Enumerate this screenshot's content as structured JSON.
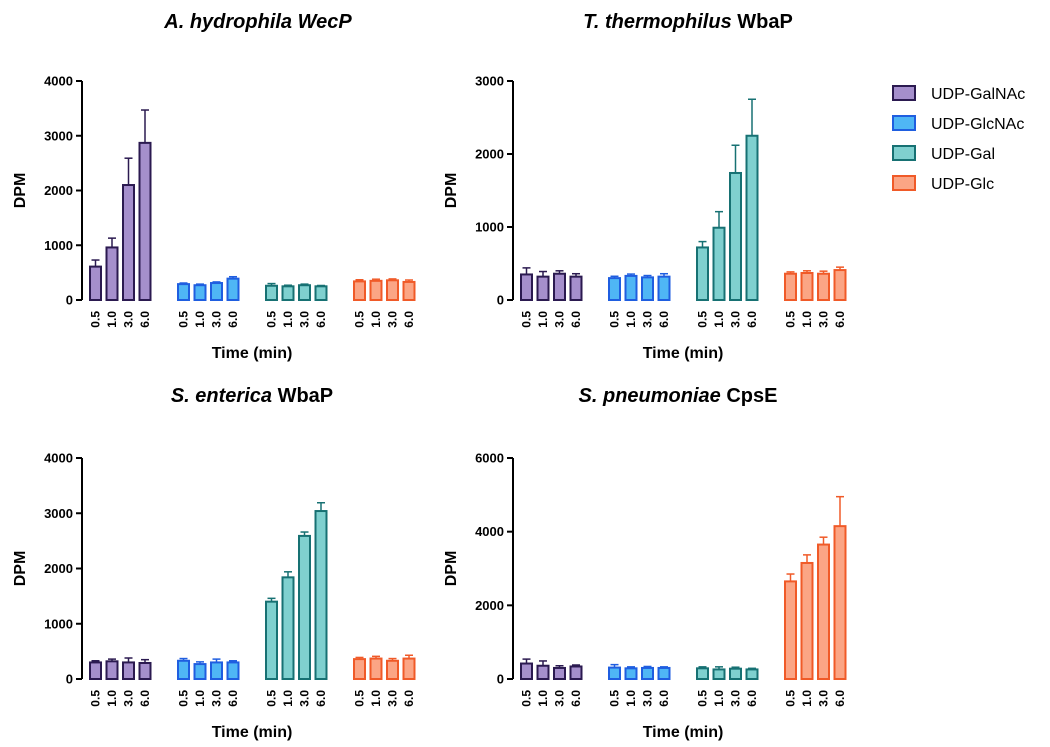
{
  "chart_data": [
    {
      "type": "bar",
      "title_italic": "A. hydrophila WecP",
      "title_rest": "",
      "xlabel": "Time (min)",
      "ylabel": "DPM",
      "ylim": [
        0,
        4000
      ],
      "yticks": [
        "0",
        "1000",
        "2000",
        "3000",
        "4000"
      ],
      "categories": [
        "0.5",
        "1.0",
        "3.0",
        "6.0"
      ],
      "series": [
        {
          "name": "UDP-GalNAc",
          "values": [
            610,
            960,
            2100,
            2870
          ],
          "errors": [
            120,
            170,
            490,
            600
          ]
        },
        {
          "name": "UDP-GlcNAc",
          "values": [
            290,
            270,
            310,
            390
          ],
          "errors": [
            20,
            20,
            20,
            35
          ]
        },
        {
          "name": "UDP-Gal",
          "values": [
            260,
            250,
            270,
            250
          ],
          "errors": [
            40,
            20,
            20,
            15
          ]
        },
        {
          "name": "UDP-Glc",
          "values": [
            340,
            350,
            360,
            330
          ],
          "errors": [
            30,
            30,
            25,
            35
          ]
        }
      ]
    },
    {
      "type": "bar",
      "title_italic": "T. thermophilus",
      "title_rest": " WbaP",
      "xlabel": "Time (min)",
      "ylabel": "DPM",
      "ylim": [
        0,
        3000
      ],
      "yticks": [
        "0",
        "1000",
        "2000",
        "3000"
      ],
      "categories": [
        "0.5",
        "1.0",
        "3.0",
        "6.0"
      ],
      "series": [
        {
          "name": "UDP-GalNAc",
          "values": [
            350,
            320,
            360,
            320
          ],
          "errors": [
            90,
            70,
            40,
            40
          ]
        },
        {
          "name": "UDP-GlcNAc",
          "values": [
            300,
            330,
            310,
            320
          ],
          "errors": [
            25,
            25,
            25,
            40
          ]
        },
        {
          "name": "UDP-Gal",
          "values": [
            720,
            990,
            1740,
            2250
          ],
          "errors": [
            80,
            220,
            380,
            500
          ]
        },
        {
          "name": "UDP-Glc",
          "values": [
            360,
            370,
            360,
            410
          ],
          "errors": [
            25,
            30,
            35,
            40
          ]
        }
      ]
    },
    {
      "type": "bar",
      "title_italic": "S. enterica",
      "title_rest": " WbaP",
      "xlabel": "Time (min)",
      "ylabel": "DPM",
      "ylim": [
        0,
        4000
      ],
      "yticks": [
        "0",
        "1000",
        "2000",
        "3000",
        "4000"
      ],
      "categories": [
        "0.5",
        "1.0",
        "3.0",
        "6.0"
      ],
      "series": [
        {
          "name": "UDP-GalNAc",
          "values": [
            300,
            320,
            300,
            290
          ],
          "errors": [
            30,
            40,
            80,
            60
          ]
        },
        {
          "name": "UDP-GlcNAc",
          "values": [
            330,
            270,
            300,
            300
          ],
          "errors": [
            40,
            40,
            60,
            30
          ]
        },
        {
          "name": "UDP-Gal",
          "values": [
            1400,
            1840,
            2590,
            3040
          ],
          "errors": [
            60,
            100,
            70,
            150
          ]
        },
        {
          "name": "UDP-Glc",
          "values": [
            360,
            370,
            330,
            370
          ],
          "errors": [
            30,
            40,
            40,
            60
          ]
        }
      ]
    },
    {
      "type": "bar",
      "title_italic": "S. pneumoniae",
      "title_rest": " CpsE",
      "xlabel": "Time (min)",
      "ylabel": "DPM",
      "ylim": [
        0,
        6000
      ],
      "yticks": [
        "0",
        "2000",
        "4000",
        "6000"
      ],
      "categories": [
        "0.5",
        "1.0",
        "3.0",
        "6.0"
      ],
      "series": [
        {
          "name": "UDP-GalNAc",
          "values": [
            420,
            360,
            300,
            340
          ],
          "errors": [
            120,
            130,
            60,
            40
          ]
        },
        {
          "name": "UDP-GlcNAc",
          "values": [
            310,
            290,
            300,
            300
          ],
          "errors": [
            80,
            40,
            40,
            30
          ]
        },
        {
          "name": "UDP-Gal",
          "values": [
            290,
            260,
            280,
            260
          ],
          "errors": [
            40,
            70,
            40,
            30
          ]
        },
        {
          "name": "UDP-Glc",
          "values": [
            2650,
            3150,
            3650,
            4150
          ],
          "errors": [
            200,
            220,
            200,
            800
          ]
        }
      ]
    }
  ],
  "legend": {
    "position": "right",
    "entries": [
      "UDP-GalNAc",
      "UDP-GlcNAc",
      "UDP-Gal",
      "UDP-Glc"
    ]
  },
  "colors": {
    "UDP-GalNAc": {
      "fill": "#a58fcc",
      "edge": "#2b1a50"
    },
    "UDP-GlcNAc": {
      "fill": "#4fb6f5",
      "edge": "#1f5ee0"
    },
    "UDP-Gal": {
      "fill": "#7fd0cf",
      "edge": "#177173"
    },
    "UDP-Glc": {
      "fill": "#fba585",
      "edge": "#f05a28"
    }
  }
}
